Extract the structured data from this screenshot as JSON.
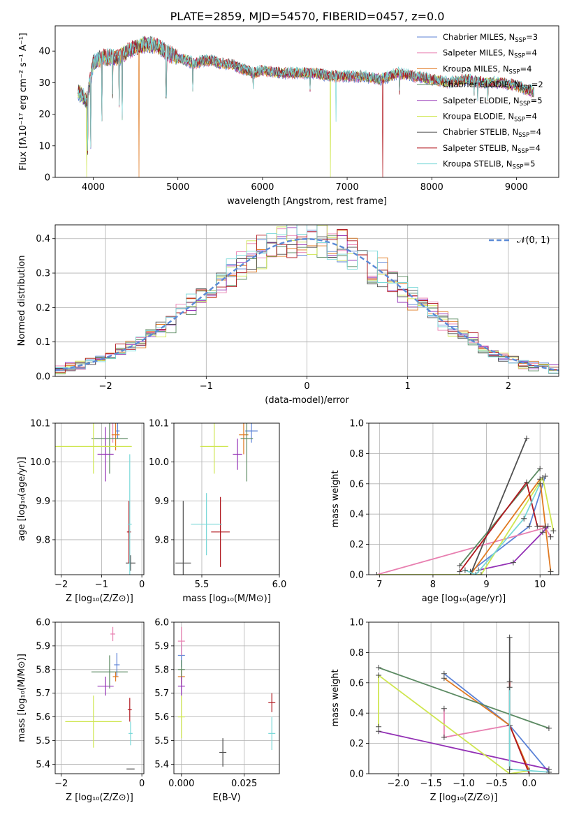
{
  "title": "PLATE=2859, MJD=54570, FIBERID=0457, z=0.0",
  "colors": {
    "chabrier_miles": "#5b82d6",
    "salpeter_miles": "#e87fb0",
    "kroupa_miles": "#e07a22",
    "chabrier_elodie": "#5b8a62",
    "salpeter_elodie": "#9330b5",
    "kroupa_elodie": "#cfe650",
    "chabrier_stelib": "#505050",
    "salpeter_stelib": "#b0171e",
    "kroupa_stelib": "#7ad8d8",
    "gaussian": "#5b8ad6",
    "grid": "#b0b0b0"
  },
  "models": [
    {
      "key": "chabrier_miles",
      "label": "Chabrier MILES, N",
      "sub": "SSP",
      "eq": "=3"
    },
    {
      "key": "salpeter_miles",
      "label": "Salpeter MILES, N",
      "sub": "SSP",
      "eq": "=4"
    },
    {
      "key": "kroupa_miles",
      "label": "Kroupa MILES, N",
      "sub": "SSP",
      "eq": "=4"
    },
    {
      "key": "chabrier_elodie",
      "label": "Chabrier ELODIE, N",
      "sub": "SSP",
      "eq": "=2"
    },
    {
      "key": "salpeter_elodie",
      "label": "Salpeter ELODIE, N",
      "sub": "SSP",
      "eq": "=5"
    },
    {
      "key": "kroupa_elodie",
      "label": "Kroupa ELODIE, N",
      "sub": "SSP",
      "eq": "=4"
    },
    {
      "key": "chabrier_stelib",
      "label": "Chabrier STELIB, N",
      "sub": "SSP",
      "eq": "=4"
    },
    {
      "key": "salpeter_stelib",
      "label": "Salpeter STELIB, N",
      "sub": "SSP",
      "eq": "=4"
    },
    {
      "key": "kroupa_stelib",
      "label": "Kroupa STELIB, N",
      "sub": "SSP",
      "eq": "=5"
    }
  ],
  "chart_data": [
    {
      "id": "spectrum",
      "type": "line",
      "xlabel": "wavelength [Angstrom, rest frame]",
      "ylabel": "Flux [fλ10⁻¹⁷ erg cm⁻² s⁻¹ A⁻¹]",
      "xlim": [
        3550,
        9500
      ],
      "ylim": [
        0,
        48
      ],
      "xticks": [
        "4000",
        "5000",
        "6000",
        "7000",
        "8000",
        "9000"
      ],
      "yticks": [
        "0",
        "10",
        "20",
        "30",
        "40"
      ],
      "legend": "top-right",
      "continuum": [
        [
          3820,
          27
        ],
        [
          3870,
          26
        ],
        [
          3920,
          24
        ],
        [
          3960,
          30
        ],
        [
          4000,
          36
        ],
        [
          4100,
          38
        ],
        [
          4200,
          38
        ],
        [
          4300,
          38
        ],
        [
          4400,
          40
        ],
        [
          4500,
          41
        ],
        [
          4600,
          42
        ],
        [
          4700,
          42
        ],
        [
          4800,
          41
        ],
        [
          4900,
          39
        ],
        [
          5000,
          38
        ],
        [
          5100,
          37
        ],
        [
          5200,
          36
        ],
        [
          5300,
          37
        ],
        [
          5400,
          37
        ],
        [
          5500,
          36
        ],
        [
          5600,
          36
        ],
        [
          5700,
          35
        ],
        [
          5800,
          34
        ],
        [
          5900,
          33
        ],
        [
          6000,
          34
        ],
        [
          6200,
          33
        ],
        [
          6400,
          33
        ],
        [
          6600,
          33
        ],
        [
          6800,
          32
        ],
        [
          7000,
          32
        ],
        [
          7200,
          32
        ],
        [
          7400,
          31
        ],
        [
          7600,
          33
        ],
        [
          7800,
          32
        ],
        [
          8000,
          31
        ],
        [
          8200,
          30
        ],
        [
          8400,
          31
        ],
        [
          8600,
          30
        ],
        [
          8800,
          30
        ],
        [
          9000,
          29
        ],
        [
          9200,
          27
        ]
      ],
      "absorption": [
        [
          3934,
          7,
          "min"
        ],
        [
          3968,
          9,
          "min"
        ],
        [
          4102,
          17,
          "min"
        ],
        [
          4226,
          25,
          "min"
        ],
        [
          4304,
          22,
          "min"
        ],
        [
          4340,
          18,
          "min"
        ],
        [
          4861,
          25,
          "min"
        ],
        [
          5175,
          27,
          "min"
        ],
        [
          5890,
          28,
          "min"
        ],
        [
          6563,
          27,
          "min"
        ],
        [
          6870,
          16.5,
          "kroupa_stelib"
        ],
        [
          7620,
          26,
          "min"
        ],
        [
          8498,
          25,
          "min"
        ],
        [
          8542,
          24,
          "min"
        ],
        [
          8662,
          24,
          "min"
        ]
      ],
      "artifacts": [
        [
          3920,
          0,
          "kroupa_elodie"
        ],
        [
          4540,
          0,
          "kroupa_miles"
        ],
        [
          6800,
          0,
          "kroupa_elodie"
        ],
        [
          7420,
          0,
          "salpeter_stelib"
        ]
      ]
    },
    {
      "id": "residual_histogram",
      "type": "histogram",
      "xlabel": "(data-model)/error",
      "ylabel": "Normed distribution",
      "xlim": [
        -2.5,
        2.5
      ],
      "ylim": [
        0,
        0.44
      ],
      "xticks": [
        "−2",
        "−1",
        "0",
        "1",
        "2"
      ],
      "yticks": [
        "0.0",
        "0.1",
        "0.2",
        "0.3",
        "0.4"
      ],
      "legend_label": "𝒩(0, 1)",
      "legend": "top-right",
      "bin_width": 0.1,
      "gaussian": {
        "mean": 0,
        "sigma": 1
      }
    },
    {
      "id": "age_vs_z",
      "type": "scatter",
      "xlabel": "Z [log₁₀(Z/Z⊙)]",
      "ylabel": "age  [log₁₀(age/yr)]",
      "xlim": [
        -2.15,
        0.05
      ],
      "ylim": [
        9.71,
        10.1
      ],
      "xticks": [
        "−2",
        "−1",
        "0"
      ],
      "yticks": [
        "9.8",
        "9.9",
        "10.0",
        "10.1"
      ],
      "points": [
        {
          "m": "chabrier_miles",
          "x": -0.6,
          "y": 10.08,
          "xe": 0.05,
          "ye": 0.02
        },
        {
          "m": "salpeter_miles",
          "x": -0.72,
          "y": 10.1,
          "xe": 0.05,
          "ye": 0.05
        },
        {
          "m": "kroupa_miles",
          "x": -0.65,
          "y": 10.07,
          "xe": 0.1,
          "ye": 0.04
        },
        {
          "m": "chabrier_elodie",
          "x": -0.8,
          "y": 10.06,
          "xe": 0.45,
          "ye": 0.09
        },
        {
          "m": "salpeter_elodie",
          "x": -0.9,
          "y": 10.02,
          "xe": 0.2,
          "ye": 0.07
        },
        {
          "m": "kroupa_elodie",
          "x": -1.2,
          "y": 10.04,
          "xe": 0.95,
          "ye": 0.07
        },
        {
          "m": "chabrier_stelib",
          "x": -0.28,
          "y": 9.74,
          "xe": 0.12,
          "ye": 0.02
        },
        {
          "m": "salpeter_stelib",
          "x": -0.32,
          "y": 9.82,
          "xe": 0.05,
          "ye": 0.08
        },
        {
          "m": "kroupa_stelib",
          "x": -0.3,
          "y": 9.84,
          "xe": 0.05,
          "ye": 0.18
        }
      ]
    },
    {
      "id": "age_vs_mass",
      "type": "scatter",
      "xlabel": "mass [log₁₀(M/M⊙)]",
      "ylabel": "",
      "xlim": [
        5.32,
        6.0
      ],
      "ylim": [
        9.71,
        10.1
      ],
      "xticks": [
        "5.5",
        "6.0"
      ],
      "yticks": [
        "9.8",
        "9.9",
        "10.0",
        "10.1"
      ],
      "points": [
        {
          "m": "chabrier_miles",
          "x": 5.82,
          "y": 10.08,
          "xe": 0.04,
          "ye": 0.03
        },
        {
          "m": "salpeter_miles",
          "x": 5.95,
          "y": 10.12,
          "xe": 0.05,
          "ye": 0.02
        },
        {
          "m": "kroupa_miles",
          "x": 5.77,
          "y": 10.07,
          "xe": 0.03,
          "ye": 0.05
        },
        {
          "m": "chabrier_elodie",
          "x": 5.79,
          "y": 10.06,
          "xe": 0.04,
          "ye": 0.11
        },
        {
          "m": "salpeter_elodie",
          "x": 5.73,
          "y": 10.02,
          "xe": 0.03,
          "ye": 0.04
        },
        {
          "m": "kroupa_elodie",
          "x": 5.58,
          "y": 10.04,
          "xe": 0.09,
          "ye": 0.07
        },
        {
          "m": "chabrier_stelib",
          "x": 5.38,
          "y": 9.74,
          "xe": 0.05,
          "ye": 0.16
        },
        {
          "m": "salpeter_stelib",
          "x": 5.62,
          "y": 9.82,
          "xe": 0.06,
          "ye": 0.09
        },
        {
          "m": "kroupa_stelib",
          "x": 5.53,
          "y": 9.84,
          "xe": 0.1,
          "ye": 0.08
        }
      ]
    },
    {
      "id": "weight_vs_age",
      "type": "line",
      "xlabel": "age  [log₁₀(age/yr)]",
      "ylabel": "mass weight",
      "xlim": [
        6.8,
        10.35
      ],
      "ylim": [
        0,
        1.0
      ],
      "xticks": [
        "7",
        "8",
        "9",
        "10"
      ],
      "yticks": [
        "0.0",
        "0.2",
        "0.4",
        "0.6",
        "0.8",
        "1.0"
      ],
      "series": [
        {
          "m": "chabrier_miles",
          "x": [
            8.7,
            9.8,
            10.1
          ],
          "y": [
            0.02,
            0.32,
            0.65
          ]
        },
        {
          "m": "salpeter_miles",
          "x": [
            6.95,
            10.1,
            10.2
          ],
          "y": [
            0.0,
            0.31,
            0.25
          ]
        },
        {
          "m": "kroupa_miles",
          "x": [
            8.7,
            10.0,
            10.2
          ],
          "y": [
            0.0,
            0.63,
            0.02
          ]
        },
        {
          "m": "chabrier_elodie",
          "x": [
            8.5,
            10.0
          ],
          "y": [
            0.06,
            0.7
          ]
        },
        {
          "m": "salpeter_elodie",
          "x": [
            8.85,
            9.5,
            10.05,
            10.15
          ],
          "y": [
            0.03,
            0.08,
            0.28,
            0.32
          ]
        },
        {
          "m": "kroupa_elodie",
          "x": [
            6.95,
            8.9,
            10.05,
            10.25
          ],
          "y": [
            0.0,
            0.0,
            0.64,
            0.29
          ]
        },
        {
          "m": "chabrier_stelib",
          "x": [
            8.7,
            9.75
          ],
          "y": [
            0.0,
            0.9
          ]
        },
        {
          "m": "salpeter_stelib",
          "x": [
            8.5,
            9.75,
            9.95,
            10.1
          ],
          "y": [
            0.02,
            0.61,
            0.32,
            0.32
          ]
        },
        {
          "m": "kroupa_stelib",
          "x": [
            8.6,
            8.8,
            9.7,
            10.0
          ],
          "y": [
            0.03,
            0.0,
            0.37,
            0.6
          ]
        }
      ]
    },
    {
      "id": "mass_vs_z",
      "type": "scatter",
      "xlabel": "Z [log₁₀(Z/Z⊙)]",
      "ylabel": "mass [log₁₀(M/M⊙)]",
      "xlim": [
        -2.15,
        0.05
      ],
      "ylim": [
        5.36,
        6.0
      ],
      "xticks": [
        "−2",
        "0"
      ],
      "yticks": [
        "5.4",
        "5.5",
        "5.6",
        "5.7",
        "5.8",
        "5.9",
        "6.0"
      ],
      "points": [
        {
          "m": "chabrier_miles",
          "x": -0.62,
          "y": 5.82,
          "xe": 0.07,
          "ye": 0.05
        },
        {
          "m": "salpeter_miles",
          "x": -0.72,
          "y": 5.95,
          "xe": 0.06,
          "ye": 0.03
        },
        {
          "m": "kroupa_miles",
          "x": -0.65,
          "y": 5.77,
          "xe": 0.07,
          "ye": 0.02
        },
        {
          "m": "chabrier_elodie",
          "x": -0.8,
          "y": 5.79,
          "xe": 0.45,
          "ye": 0.07
        },
        {
          "m": "salpeter_elodie",
          "x": -0.9,
          "y": 5.73,
          "xe": 0.2,
          "ye": 0.04
        },
        {
          "m": "kroupa_elodie",
          "x": -1.2,
          "y": 5.58,
          "xe": 0.7,
          "ye": 0.11
        },
        {
          "m": "chabrier_stelib",
          "x": -0.28,
          "y": 5.38,
          "xe": 0.1,
          "ye": 0.0
        },
        {
          "m": "salpeter_stelib",
          "x": -0.3,
          "y": 5.63,
          "xe": 0.05,
          "ye": 0.05
        },
        {
          "m": "kroupa_stelib",
          "x": -0.28,
          "y": 5.53,
          "xe": 0.05,
          "ye": 0.05
        }
      ]
    },
    {
      "id": "mass_vs_ebv",
      "type": "scatter",
      "xlabel": "E(B-V)",
      "ylabel": "",
      "xlim": [
        -0.003,
        0.039
      ],
      "ylim": [
        5.36,
        6.0
      ],
      "xticks": [
        "0.000",
        "0.025"
      ],
      "yticks": [
        "5.4",
        "5.5",
        "5.6",
        "5.7",
        "5.8",
        "5.9",
        "6.0"
      ],
      "points": [
        {
          "m": "chabrier_miles",
          "x": 0.0,
          "y": 5.86,
          "xe": 0,
          "ye": 0.05
        },
        {
          "m": "salpeter_miles",
          "x": 0.0,
          "y": 5.92,
          "xe": 0,
          "ye": 0.06
        },
        {
          "m": "kroupa_miles",
          "x": 0.0,
          "y": 5.77,
          "xe": 0,
          "ye": 0.03
        },
        {
          "m": "chabrier_elodie",
          "x": 0.0,
          "y": 5.8,
          "xe": 0,
          "ye": 0.04
        },
        {
          "m": "salpeter_elodie",
          "x": 0.0,
          "y": 5.73,
          "xe": 0,
          "ye": 0.04
        },
        {
          "m": "kroupa_elodie",
          "x": 0.0,
          "y": 5.6,
          "xe": 0,
          "ye": 0.09
        },
        {
          "m": "chabrier_stelib",
          "x": 0.0165,
          "y": 5.45,
          "xe": 0,
          "ye": 0.06
        },
        {
          "m": "salpeter_stelib",
          "x": 0.036,
          "y": 5.66,
          "xe": 0,
          "ye": 0.04
        },
        {
          "m": "kroupa_stelib",
          "x": 0.036,
          "y": 5.53,
          "xe": 0,
          "ye": 0.07
        }
      ]
    },
    {
      "id": "weight_vs_z",
      "type": "line",
      "xlabel": "Z [log₁₀(Z/Z⊙)]",
      "ylabel": "mass weight",
      "xlim": [
        -2.45,
        0.45
      ],
      "ylim": [
        0,
        1.0
      ],
      "xticks": [
        "−2.0",
        "−1.5",
        "−1.0",
        "−0.5",
        "0.0"
      ],
      "yticks": [
        "0.0",
        "0.2",
        "0.4",
        "0.6",
        "0.8",
        "1.0"
      ],
      "series": [
        {
          "m": "chabrier_miles",
          "x": [
            -1.3,
            -0.3,
            0.3
          ],
          "y": [
            0.66,
            0.32,
            0.01
          ]
        },
        {
          "m": "salpeter_miles",
          "x": [
            -1.3,
            -1.3,
            -0.3
          ],
          "y": [
            0.43,
            0.24,
            0.32
          ]
        },
        {
          "m": "kroupa_miles",
          "x": [
            -1.3,
            -0.3,
            0.0
          ],
          "y": [
            0.63,
            0.32,
            0.02
          ]
        },
        {
          "m": "chabrier_elodie",
          "x": [
            -2.3,
            0.3
          ],
          "y": [
            0.7,
            0.3
          ]
        },
        {
          "m": "salpeter_elodie",
          "x": [
            -2.3,
            0.3
          ],
          "y": [
            0.28,
            0.03
          ]
        },
        {
          "m": "kroupa_elodie",
          "x": [
            -2.3,
            -2.3,
            -0.3,
            0.0
          ],
          "y": [
            0.31,
            0.65,
            0.0,
            0.02
          ]
        },
        {
          "m": "chabrier_stelib",
          "x": [
            -0.3,
            -0.3
          ],
          "y": [
            0.9,
            0.03
          ]
        },
        {
          "m": "salpeter_stelib",
          "x": [
            -0.3,
            -0.3,
            0.0
          ],
          "y": [
            0.61,
            0.32,
            0.0
          ]
        },
        {
          "m": "kroupa_stelib",
          "x": [
            -0.3,
            -0.3,
            0.3
          ],
          "y": [
            0.57,
            0.03,
            0.01
          ]
        }
      ]
    }
  ]
}
